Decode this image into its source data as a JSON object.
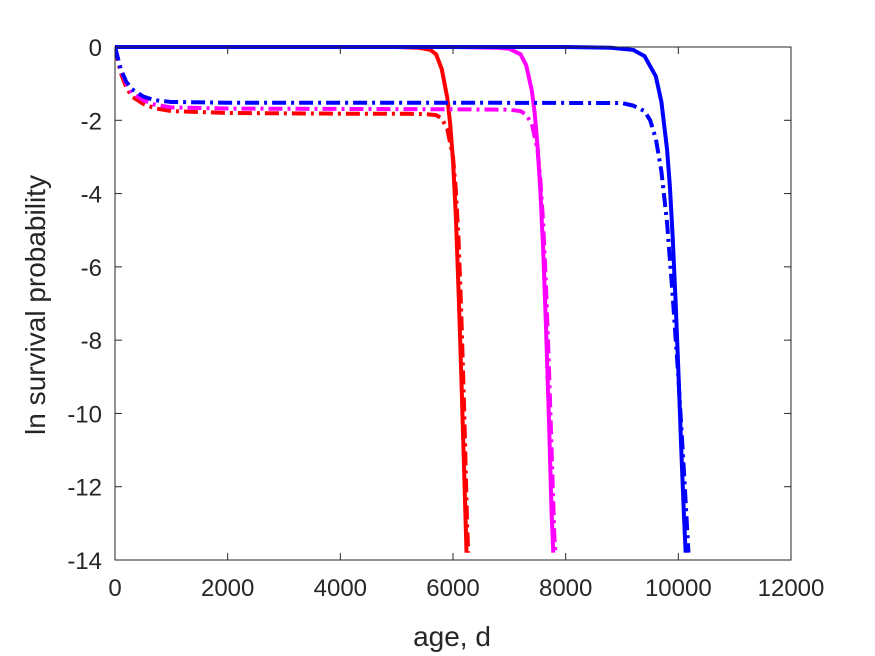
{
  "chart_data": {
    "type": "line",
    "title": "",
    "xlabel": "age, d",
    "ylabel": "ln survival probability",
    "xlim": [
      0,
      12000
    ],
    "ylim": [
      -14,
      0
    ],
    "x_ticks": [
      0,
      2000,
      4000,
      6000,
      8000,
      10000,
      12000
    ],
    "x_tick_labels": [
      "0",
      "2000",
      "4000",
      "6000",
      "8000",
      "10000",
      "12000"
    ],
    "y_ticks": [
      0,
      -2,
      -4,
      -6,
      -8,
      -10,
      -12,
      -14
    ],
    "y_tick_labels": [
      "0",
      "-2",
      "-4",
      "-6",
      "-8",
      "-10",
      "-12",
      "-14"
    ],
    "grid": false,
    "legend": "none",
    "series": [
      {
        "color": "#ff0000",
        "style": "solid",
        "points": [
          [
            0,
            0
          ],
          [
            2000,
            0
          ],
          [
            4000,
            0
          ],
          [
            5000,
            0
          ],
          [
            5400,
            -0.02
          ],
          [
            5600,
            -0.08
          ],
          [
            5700,
            -0.2
          ],
          [
            5800,
            -0.6
          ],
          [
            5900,
            -1.4
          ],
          [
            5950,
            -2.1
          ],
          [
            6000,
            -3.1
          ],
          [
            6050,
            -4.6
          ],
          [
            6100,
            -6.7
          ],
          [
            6150,
            -9.1
          ],
          [
            6200,
            -11.7
          ],
          [
            6240,
            -13.8
          ]
        ]
      },
      {
        "color": "#ff0000",
        "style": "dashdot",
        "points": [
          [
            0,
            0
          ],
          [
            50,
            -0.35
          ],
          [
            100,
            -0.7
          ],
          [
            200,
            -1.1
          ],
          [
            300,
            -1.35
          ],
          [
            500,
            -1.55
          ],
          [
            700,
            -1.67
          ],
          [
            1000,
            -1.75
          ],
          [
            2000,
            -1.8
          ],
          [
            4000,
            -1.82
          ],
          [
            5000,
            -1.82
          ],
          [
            5500,
            -1.83
          ],
          [
            5700,
            -1.86
          ],
          [
            5800,
            -1.95
          ],
          [
            5900,
            -2.25
          ],
          [
            6000,
            -3.0
          ],
          [
            6050,
            -3.9
          ],
          [
            6100,
            -5.3
          ],
          [
            6150,
            -7.4
          ],
          [
            6200,
            -10.0
          ],
          [
            6250,
            -13.0
          ],
          [
            6270,
            -13.8
          ]
        ]
      },
      {
        "color": "#ff00ff",
        "style": "solid",
        "points": [
          [
            0,
            0
          ],
          [
            4000,
            0
          ],
          [
            6000,
            0
          ],
          [
            6800,
            -0.02
          ],
          [
            7000,
            -0.05
          ],
          [
            7200,
            -0.2
          ],
          [
            7300,
            -0.5
          ],
          [
            7400,
            -1.2
          ],
          [
            7450,
            -1.8
          ],
          [
            7500,
            -2.7
          ],
          [
            7550,
            -3.9
          ],
          [
            7600,
            -5.5
          ],
          [
            7650,
            -7.6
          ],
          [
            7700,
            -10.0
          ],
          [
            7750,
            -12.7
          ],
          [
            7780,
            -13.8
          ]
        ]
      },
      {
        "color": "#ff00ff",
        "style": "dashdot",
        "points": [
          [
            0,
            0
          ],
          [
            50,
            -0.3
          ],
          [
            100,
            -0.6
          ],
          [
            200,
            -1.0
          ],
          [
            300,
            -1.25
          ],
          [
            500,
            -1.45
          ],
          [
            700,
            -1.57
          ],
          [
            1000,
            -1.65
          ],
          [
            2000,
            -1.68
          ],
          [
            6000,
            -1.7
          ],
          [
            7000,
            -1.71
          ],
          [
            7200,
            -1.75
          ],
          [
            7300,
            -1.85
          ],
          [
            7400,
            -2.1
          ],
          [
            7500,
            -2.8
          ],
          [
            7550,
            -3.6
          ],
          [
            7600,
            -4.8
          ],
          [
            7650,
            -6.5
          ],
          [
            7700,
            -8.6
          ],
          [
            7750,
            -11.0
          ],
          [
            7800,
            -13.4
          ],
          [
            7820,
            -13.8
          ]
        ]
      },
      {
        "color": "#0000ff",
        "style": "solid",
        "points": [
          [
            0,
            0
          ],
          [
            4000,
            0
          ],
          [
            8000,
            0
          ],
          [
            8800,
            -0.02
          ],
          [
            9200,
            -0.08
          ],
          [
            9400,
            -0.25
          ],
          [
            9600,
            -0.8
          ],
          [
            9700,
            -1.5
          ],
          [
            9800,
            -2.8
          ],
          [
            9850,
            -3.8
          ],
          [
            9900,
            -5.2
          ],
          [
            9950,
            -6.9
          ],
          [
            10000,
            -8.8
          ],
          [
            10050,
            -10.9
          ],
          [
            10100,
            -12.8
          ],
          [
            10130,
            -13.8
          ]
        ]
      },
      {
        "color": "#0000ff",
        "style": "dashdot",
        "points": [
          [
            0,
            0
          ],
          [
            50,
            -0.3
          ],
          [
            100,
            -0.6
          ],
          [
            200,
            -0.95
          ],
          [
            300,
            -1.15
          ],
          [
            500,
            -1.35
          ],
          [
            700,
            -1.45
          ],
          [
            1000,
            -1.5
          ],
          [
            2000,
            -1.52
          ],
          [
            6000,
            -1.52
          ],
          [
            9000,
            -1.53
          ],
          [
            9200,
            -1.6
          ],
          [
            9400,
            -1.75
          ],
          [
            9500,
            -2.0
          ],
          [
            9600,
            -2.5
          ],
          [
            9700,
            -3.4
          ],
          [
            9800,
            -4.8
          ],
          [
            9900,
            -6.8
          ],
          [
            10000,
            -9.0
          ],
          [
            10100,
            -11.6
          ],
          [
            10180,
            -13.8
          ]
        ]
      }
    ]
  }
}
